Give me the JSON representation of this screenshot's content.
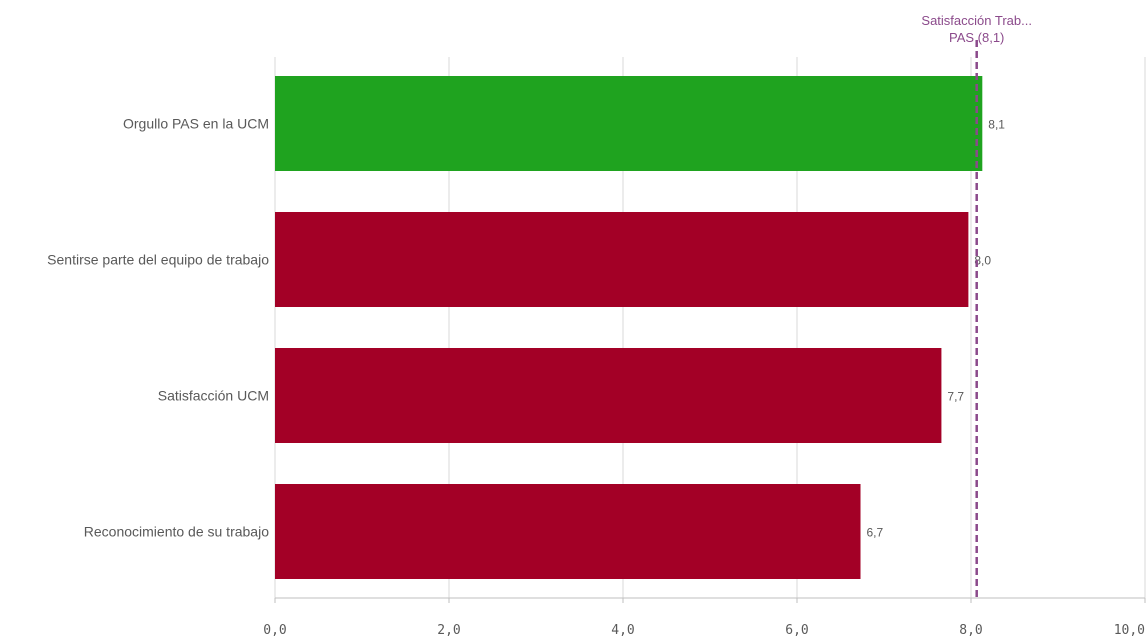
{
  "chart_data": {
    "type": "bar",
    "orientation": "horizontal",
    "categories": [
      "Orgullo PAS en la UCM",
      "Sentirse parte del equipo de trabajo",
      "Satisfacción UCM",
      "Reconocimiento de su trabajo"
    ],
    "values": [
      8.13,
      7.97,
      7.66,
      6.73
    ],
    "value_labels": [
      "8,1",
      "8,0",
      "7,7",
      "6,7"
    ],
    "bar_colors": [
      "#1fa31f",
      "#a30026",
      "#a30026",
      "#a30026"
    ],
    "xlim": [
      0,
      10
    ],
    "x_ticks": [
      0,
      2,
      4,
      6,
      8,
      10
    ],
    "x_tick_labels": [
      "0,0",
      "2,0",
      "4,0",
      "6,0",
      "8,0",
      "10,0"
    ],
    "grid": true,
    "reference_line": {
      "value": 8.1,
      "label_line1": "Satisfacción Trab...",
      "label_line2": "PAS (8,1)",
      "color": "#8b4a8b",
      "style": "dashed"
    }
  }
}
